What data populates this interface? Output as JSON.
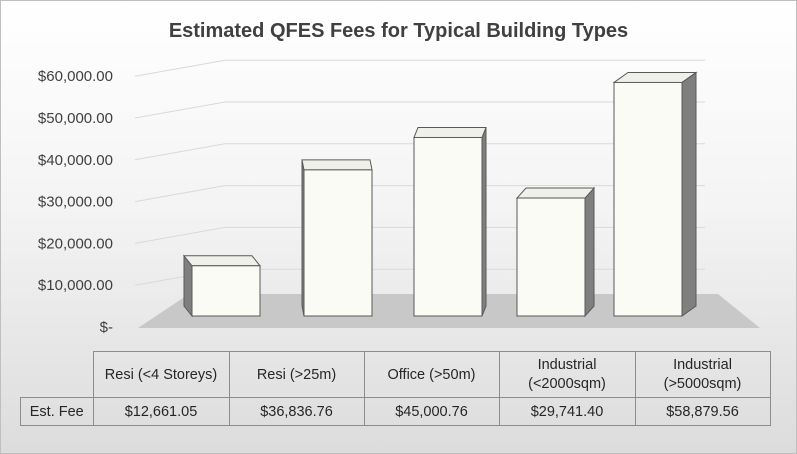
{
  "chart_data": {
    "type": "bar",
    "title": "Estimated QFES Fees for Typical Building Types",
    "categories": [
      "Resi (<4 Storeys)",
      "Resi (>25m)",
      "Office (>50m)",
      "Industrial (<2000sqm)",
      "Industrial (>5000sqm)"
    ],
    "series": [
      {
        "name": "Est. Fee",
        "values": [
          12661.05,
          36836.76,
          45000.76,
          29741.4,
          58879.56
        ],
        "labels": [
          "$12,661.05",
          "$36,836.76",
          "$45,000.76",
          "$29,741.40",
          "$58,879.56"
        ]
      }
    ],
    "yticks": [
      "$-",
      "$10,000.00",
      "$20,000.00",
      "$30,000.00",
      "$40,000.00",
      "$50,000.00",
      "$60,000.00"
    ],
    "ylim": [
      0,
      60000
    ],
    "grid": true,
    "data_table": true,
    "colors": {
      "bar_front": "#fbfbf6",
      "bar_side": "#7f7f7f",
      "bar_top": "#f0f0ea",
      "floor": "#c8c8c8",
      "grid": "#d9d9d9"
    }
  }
}
